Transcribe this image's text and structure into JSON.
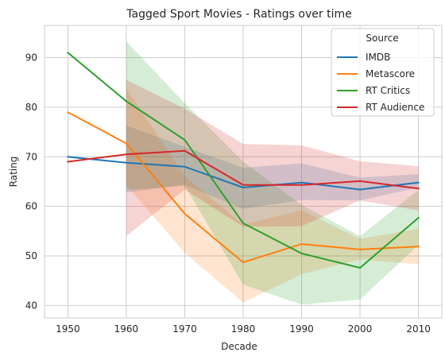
{
  "chart_data": {
    "type": "line",
    "title": "Tagged Sport Movies - Ratings over time",
    "xlabel": "Decade",
    "ylabel": "Rating",
    "x": [
      1950,
      1960,
      1970,
      1980,
      1990,
      2000,
      2010
    ],
    "xticks": [
      "1950",
      "1960",
      "1970",
      "1980",
      "1990",
      "2000",
      "2010"
    ],
    "yticks": [
      "40",
      "50",
      "60",
      "70",
      "80",
      "90"
    ],
    "xlim": [
      1946,
      2014
    ],
    "ylim": [
      37.5,
      96.5
    ],
    "grid": true,
    "legend": {
      "title": "Source",
      "placement": "top-right"
    },
    "series": [
      {
        "name": "IMDB",
        "color": "#1f77b4",
        "values": [
          70.0,
          68.8,
          68.0,
          63.8,
          64.8,
          63.4,
          64.8
        ],
        "ci_low": [
          null,
          62.8,
          64.3,
          59.5,
          61.3,
          61.2,
          63.8
        ],
        "ci_high": [
          null,
          76.3,
          72.0,
          67.8,
          68.7,
          65.8,
          66.5
        ]
      },
      {
        "name": "Metascore",
        "color": "#ff7f0e",
        "values": [
          79.0,
          72.7,
          58.5,
          48.7,
          52.4,
          51.3,
          51.9
        ],
        "ci_low": [
          null,
          64.3,
          50.6,
          40.6,
          46.3,
          49.3,
          48.3
        ],
        "ci_high": [
          null,
          83.7,
          66.1,
          56.3,
          59.2,
          53.4,
          55.5
        ]
      },
      {
        "name": "RT Critics",
        "color": "#2ca02c",
        "values": [
          91.0,
          81.2,
          73.4,
          56.6,
          50.5,
          47.6,
          57.7
        ],
        "ci_low": [
          null,
          63.3,
          64.2,
          44.2,
          40.2,
          41.2,
          52.2
        ],
        "ci_high": [
          null,
          93.3,
          80.8,
          69.0,
          60.3,
          54.0,
          63.3
        ]
      },
      {
        "name": "RT Audience",
        "color": "#d62728",
        "values": [
          69.0,
          70.5,
          71.2,
          64.3,
          64.3,
          65.1,
          63.6
        ],
        "ci_low": [
          null,
          54.0,
          63.4,
          55.9,
          56.0,
          61.2,
          59.2
        ],
        "ci_high": [
          null,
          85.5,
          79.7,
          72.6,
          72.3,
          69.1,
          68.1
        ]
      }
    ]
  }
}
